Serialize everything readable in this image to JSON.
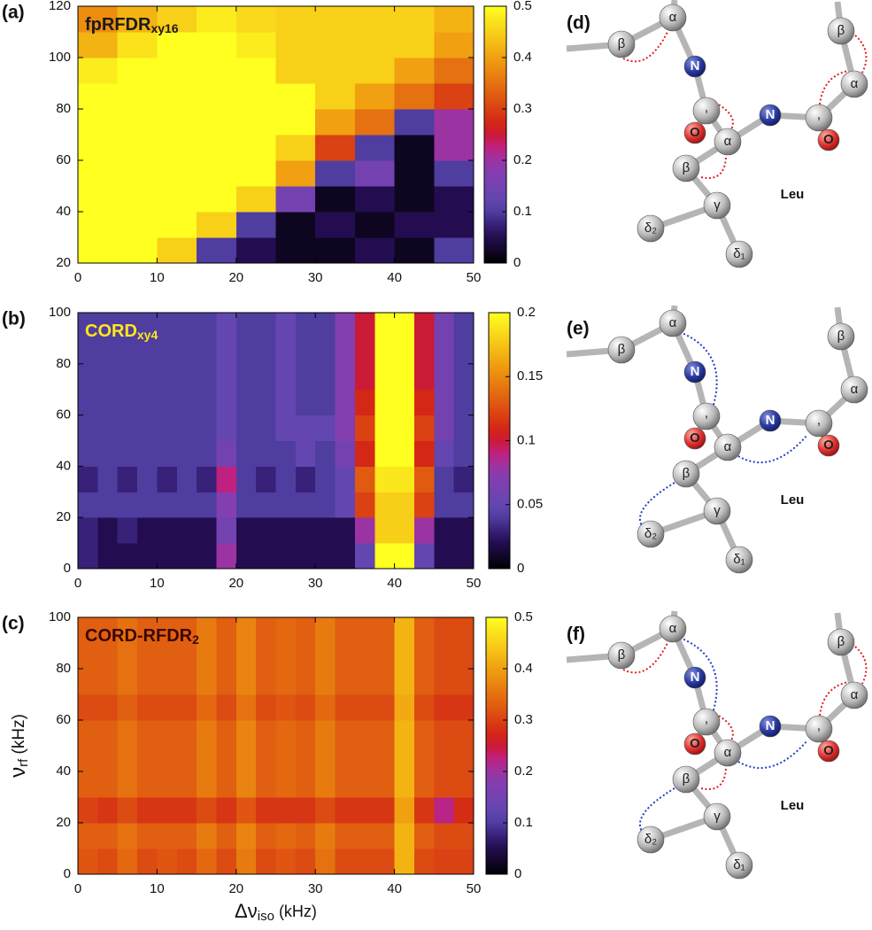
{
  "chart_data": [
    {
      "type": "heatmap",
      "panel": "(a)",
      "title": "fpRFDR",
      "title_sub": "xy16",
      "title_color": "#1a1a1a",
      "x_edges": [
        0,
        5,
        10,
        15,
        20,
        25,
        30,
        35,
        40,
        45,
        50
      ],
      "y_edges": [
        20,
        30,
        40,
        50,
        60,
        70,
        80,
        90,
        100,
        110,
        120
      ],
      "z": [
        [
          0.5,
          0.5,
          0.45,
          0.1,
          0.05,
          0.02,
          0.02,
          0.05,
          0.02,
          0.1
        ],
        [
          0.5,
          0.5,
          0.5,
          0.45,
          0.1,
          0.02,
          0.05,
          0.02,
          0.05,
          0.05
        ],
        [
          0.5,
          0.5,
          0.5,
          0.5,
          0.45,
          0.15,
          0.02,
          0.05,
          0.02,
          0.05
        ],
        [
          0.5,
          0.5,
          0.5,
          0.5,
          0.5,
          0.4,
          0.1,
          0.15,
          0.02,
          0.1
        ],
        [
          0.5,
          0.5,
          0.5,
          0.5,
          0.5,
          0.45,
          0.3,
          0.1,
          0.02,
          0.2
        ],
        [
          0.5,
          0.5,
          0.5,
          0.5,
          0.5,
          0.5,
          0.4,
          0.35,
          0.1,
          0.2
        ],
        [
          0.5,
          0.5,
          0.5,
          0.5,
          0.5,
          0.5,
          0.45,
          0.4,
          0.35,
          0.3
        ],
        [
          0.48,
          0.5,
          0.5,
          0.5,
          0.5,
          0.45,
          0.45,
          0.45,
          0.4,
          0.35
        ],
        [
          0.42,
          0.47,
          0.5,
          0.5,
          0.48,
          0.45,
          0.45,
          0.45,
          0.45,
          0.4
        ],
        [
          0.38,
          0.42,
          0.45,
          0.48,
          0.46,
          0.45,
          0.45,
          0.45,
          0.45,
          0.42
        ]
      ],
      "xlim": [
        0,
        50
      ],
      "ylim": [
        20,
        120
      ],
      "xticks": [
        0,
        10,
        20,
        30,
        40,
        50
      ],
      "yticks": [
        20,
        40,
        60,
        80,
        100,
        120
      ],
      "zlim": [
        0,
        0.5
      ],
      "zticks": [
        0,
        0.1,
        0.2,
        0.3,
        0.4,
        0.5
      ]
    },
    {
      "type": "heatmap",
      "panel": "(b)",
      "title": "CORD",
      "title_sub": "xy4",
      "title_color": "#ffe81a",
      "x_edges": [
        0,
        2.5,
        5,
        7.5,
        10,
        12.5,
        15,
        17.5,
        20,
        22.5,
        25,
        27.5,
        30,
        32.5,
        35,
        37.5,
        40,
        42.5,
        45,
        47.5,
        50
      ],
      "y_edges": [
        0,
        10,
        20,
        30,
        40,
        50,
        60,
        70,
        80,
        90,
        100
      ],
      "z": [
        [
          0.03,
          0.02,
          0.02,
          0.02,
          0.02,
          0.02,
          0.02,
          0.08,
          0.02,
          0.02,
          0.02,
          0.02,
          0.02,
          0.02,
          0.05,
          0.2,
          0.2,
          0.05,
          0.02,
          0.02
        ],
        [
          0.03,
          0.02,
          0.03,
          0.02,
          0.02,
          0.02,
          0.02,
          0.06,
          0.02,
          0.02,
          0.02,
          0.02,
          0.02,
          0.02,
          0.08,
          0.18,
          0.18,
          0.08,
          0.02,
          0.02
        ],
        [
          0.04,
          0.04,
          0.04,
          0.04,
          0.04,
          0.04,
          0.04,
          0.07,
          0.04,
          0.04,
          0.04,
          0.04,
          0.04,
          0.05,
          0.12,
          0.18,
          0.18,
          0.12,
          0.04,
          0.04
        ],
        [
          0.03,
          0.04,
          0.03,
          0.04,
          0.03,
          0.04,
          0.03,
          0.09,
          0.04,
          0.03,
          0.04,
          0.03,
          0.04,
          0.05,
          0.13,
          0.19,
          0.19,
          0.13,
          0.04,
          0.03
        ],
        [
          0.04,
          0.04,
          0.04,
          0.04,
          0.04,
          0.04,
          0.04,
          0.06,
          0.04,
          0.04,
          0.04,
          0.05,
          0.04,
          0.06,
          0.11,
          0.2,
          0.2,
          0.11,
          0.05,
          0.04
        ],
        [
          0.04,
          0.04,
          0.04,
          0.04,
          0.04,
          0.04,
          0.04,
          0.05,
          0.04,
          0.04,
          0.05,
          0.05,
          0.05,
          0.07,
          0.12,
          0.2,
          0.2,
          0.12,
          0.06,
          0.04
        ],
        [
          0.04,
          0.04,
          0.04,
          0.04,
          0.04,
          0.04,
          0.04,
          0.05,
          0.04,
          0.04,
          0.05,
          0.04,
          0.04,
          0.07,
          0.11,
          0.2,
          0.2,
          0.11,
          0.06,
          0.04
        ],
        [
          0.04,
          0.04,
          0.04,
          0.04,
          0.04,
          0.04,
          0.04,
          0.05,
          0.04,
          0.04,
          0.05,
          0.04,
          0.04,
          0.07,
          0.1,
          0.2,
          0.2,
          0.1,
          0.06,
          0.04
        ],
        [
          0.04,
          0.04,
          0.04,
          0.04,
          0.04,
          0.04,
          0.04,
          0.05,
          0.04,
          0.04,
          0.05,
          0.04,
          0.04,
          0.07,
          0.1,
          0.2,
          0.2,
          0.1,
          0.06,
          0.04
        ],
        [
          0.04,
          0.04,
          0.04,
          0.04,
          0.04,
          0.04,
          0.04,
          0.05,
          0.04,
          0.04,
          0.05,
          0.04,
          0.04,
          0.07,
          0.1,
          0.2,
          0.2,
          0.1,
          0.06,
          0.04
        ]
      ],
      "xlim": [
        0,
        50
      ],
      "ylim": [
        0,
        100
      ],
      "xticks": [
        0,
        10,
        20,
        30,
        40,
        50
      ],
      "yticks": [
        0,
        20,
        40,
        60,
        80,
        100
      ],
      "zlim": [
        0,
        0.2
      ],
      "zticks": [
        0,
        0.05,
        0.1,
        0.15,
        0.2
      ]
    },
    {
      "type": "heatmap",
      "panel": "(c)",
      "title": "CORD-RFDR",
      "title_sub": "2",
      "title_color": "#3a0606",
      "x_edges": [
        0,
        2.5,
        5,
        7.5,
        10,
        12.5,
        15,
        17.5,
        20,
        22.5,
        25,
        27.5,
        30,
        32.5,
        35,
        37.5,
        40,
        42.5,
        45,
        47.5,
        50
      ],
      "y_edges": [
        0,
        10,
        20,
        30,
        40,
        50,
        60,
        70,
        80,
        90,
        100
      ],
      "z": [
        [
          0.32,
          0.31,
          0.34,
          0.31,
          0.32,
          0.31,
          0.34,
          0.31,
          0.36,
          0.31,
          0.32,
          0.31,
          0.35,
          0.31,
          0.31,
          0.31,
          0.42,
          0.31,
          0.3,
          0.3
        ],
        [
          0.33,
          0.33,
          0.35,
          0.33,
          0.33,
          0.33,
          0.36,
          0.33,
          0.37,
          0.33,
          0.34,
          0.33,
          0.36,
          0.33,
          0.33,
          0.33,
          0.42,
          0.33,
          0.31,
          0.31
        ],
        [
          0.3,
          0.29,
          0.31,
          0.29,
          0.29,
          0.29,
          0.31,
          0.29,
          0.32,
          0.29,
          0.29,
          0.29,
          0.31,
          0.29,
          0.29,
          0.29,
          0.4,
          0.29,
          0.22,
          0.28
        ],
        [
          0.33,
          0.33,
          0.35,
          0.33,
          0.33,
          0.33,
          0.36,
          0.33,
          0.37,
          0.33,
          0.34,
          0.33,
          0.36,
          0.33,
          0.33,
          0.33,
          0.42,
          0.33,
          0.31,
          0.31
        ],
        [
          0.33,
          0.33,
          0.35,
          0.33,
          0.33,
          0.33,
          0.36,
          0.33,
          0.37,
          0.33,
          0.34,
          0.33,
          0.36,
          0.33,
          0.33,
          0.33,
          0.42,
          0.33,
          0.31,
          0.31
        ],
        [
          0.33,
          0.33,
          0.35,
          0.33,
          0.33,
          0.33,
          0.36,
          0.33,
          0.37,
          0.33,
          0.34,
          0.33,
          0.36,
          0.33,
          0.33,
          0.33,
          0.42,
          0.33,
          0.31,
          0.31
        ],
        [
          0.31,
          0.31,
          0.33,
          0.31,
          0.31,
          0.31,
          0.34,
          0.31,
          0.35,
          0.31,
          0.32,
          0.31,
          0.34,
          0.31,
          0.31,
          0.31,
          0.41,
          0.31,
          0.29,
          0.29
        ],
        [
          0.33,
          0.33,
          0.35,
          0.33,
          0.33,
          0.33,
          0.36,
          0.33,
          0.37,
          0.33,
          0.34,
          0.33,
          0.36,
          0.33,
          0.33,
          0.33,
          0.42,
          0.33,
          0.31,
          0.31
        ],
        [
          0.33,
          0.33,
          0.35,
          0.33,
          0.33,
          0.33,
          0.36,
          0.33,
          0.37,
          0.33,
          0.34,
          0.33,
          0.36,
          0.33,
          0.33,
          0.33,
          0.42,
          0.33,
          0.31,
          0.31
        ],
        [
          0.33,
          0.33,
          0.35,
          0.33,
          0.33,
          0.33,
          0.36,
          0.33,
          0.37,
          0.33,
          0.34,
          0.33,
          0.36,
          0.33,
          0.33,
          0.33,
          0.42,
          0.33,
          0.31,
          0.31
        ]
      ],
      "xlim": [
        0,
        50
      ],
      "ylim": [
        0,
        100
      ],
      "xticks": [
        0,
        10,
        20,
        30,
        40,
        50
      ],
      "yticks": [
        0,
        20,
        40,
        60,
        80,
        100
      ],
      "zlim": [
        0,
        0.5
      ],
      "zticks": [
        0,
        0.1,
        0.2,
        0.3,
        0.4,
        0.5
      ],
      "ylabel_parts": [
        "ν",
        "rf",
        " (kHz)"
      ],
      "xlabel_parts": [
        "Δν",
        "iso",
        " (kHz)"
      ]
    }
  ],
  "diagrams": [
    {
      "panel": "(d)",
      "atoms": [
        "β",
        "α",
        "N",
        ",",
        "O",
        "α",
        "N",
        ",",
        "O",
        "α",
        "β",
        "β",
        "γ",
        "δ₂",
        "δ₁"
      ],
      "residue": "Leu"
    },
    {
      "panel": "(e)",
      "atoms": [
        "β",
        "α",
        "N",
        ",",
        "O",
        "α",
        "N",
        ",",
        "O",
        "α",
        "β",
        "β",
        "γ",
        "δ₂",
        "δ₁"
      ],
      "residue": "Leu"
    },
    {
      "panel": "(f)",
      "atoms": [
        "β",
        "α",
        "N",
        ",",
        "O",
        "α",
        "N",
        ",",
        "O",
        "α",
        "β",
        "β",
        "γ",
        "δ₂",
        "δ₁"
      ],
      "residue": "Leu"
    }
  ]
}
